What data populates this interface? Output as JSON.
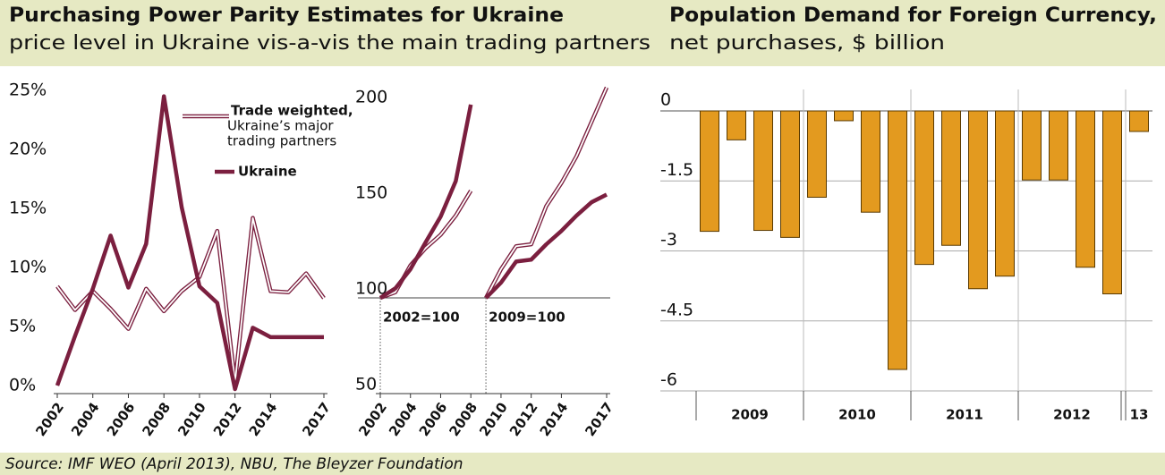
{
  "chart_data": [
    {
      "type": "line",
      "title": "Purchasing Power Parity Estimates for Ukraine",
      "subtitle": "price level in Ukraine vis-a-vis the main trading partners",
      "x": [
        2002,
        2003,
        2004,
        2005,
        2006,
        2007,
        2008,
        2009,
        2010,
        2011,
        2012,
        2013,
        2014,
        2015,
        2016,
        2017
      ],
      "xlim": [
        2002,
        2017
      ],
      "xticks": [
        2002,
        2004,
        2006,
        2008,
        2010,
        2012,
        2014,
        2017
      ],
      "ylim": [
        0,
        25
      ],
      "yticks": [
        {
          "value": 0,
          "label": "0%"
        },
        {
          "value": 5,
          "label": "5%"
        },
        {
          "value": 10,
          "label": "10%"
        },
        {
          "value": 15,
          "label": "15%"
        },
        {
          "value": 20,
          "label": "20%"
        },
        {
          "value": 25,
          "label": "25%"
        }
      ],
      "series": [
        {
          "name": "Trade weighted,",
          "description": [
            "Ukraine’s major",
            "trading partners"
          ],
          "style": "double",
          "color": "#7b1f3f",
          "values": [
            8.7,
            6.7,
            8.3,
            6.8,
            5.1,
            8.5,
            6.6,
            8.3,
            9.5,
            13.4,
            0.6,
            14.5,
            8.3,
            8.2,
            9.8,
            7.7
          ]
        },
        {
          "name": "Ukraine",
          "style": "solid",
          "color": "#7b1f3f",
          "values": [
            0.3,
            4.5,
            8.5,
            13,
            8.6,
            12.3,
            24.8,
            15.4,
            8.7,
            7.3,
            0,
            5.2,
            4.4,
            4.4,
            4.4,
            4.4
          ]
        }
      ]
    },
    {
      "type": "line",
      "xlim": [
        2002,
        2017
      ],
      "xticks": [
        2002,
        2004,
        2006,
        2008,
        2010,
        2012,
        2014,
        2017
      ],
      "ylim": [
        50,
        215
      ],
      "yticks": [
        50,
        100,
        150,
        200
      ],
      "reference_line": 100,
      "panels": [
        {
          "label": "2002=100",
          "x": [
            2002,
            2003,
            2004,
            2005,
            2006,
            2007,
            2008
          ],
          "series": [
            {
              "style": "double",
              "color": "#7b1f3f",
              "values": [
                100,
                103,
                117,
                126,
                133,
                143,
                156
              ]
            },
            {
              "style": "solid",
              "color": "#7b1f3f",
              "values": [
                100,
                105,
                115,
                129,
                142.5,
                161,
                201
              ]
            }
          ]
        },
        {
          "label": "2009=100",
          "x": [
            2009,
            2010,
            2011,
            2012,
            2013,
            2014,
            2015,
            2016,
            2017
          ],
          "series": [
            {
              "style": "double",
              "color": "#7b1f3f",
              "values": [
                100,
                115,
                127,
                128,
                148,
                160,
                174,
                192,
                210
              ]
            },
            {
              "style": "solid",
              "color": "#7b1f3f",
              "values": [
                100,
                108,
                119,
                120,
                128,
                135,
                143,
                150,
                154
              ]
            }
          ]
        }
      ]
    },
    {
      "type": "bar",
      "title": "Population Demand for Foreign Currency,",
      "subtitle": "net purchases, $ billion",
      "categories": [
        null,
        null,
        null,
        null,
        null,
        null,
        null,
        null,
        null,
        null,
        null,
        null,
        null,
        null,
        null,
        null,
        null
      ],
      "groups": [
        "2009",
        "2010",
        "2011",
        "2012",
        "13"
      ],
      "values": [
        -2.58,
        -0.62,
        -2.56,
        -2.71,
        -1.85,
        -0.21,
        -2.17,
        -5.54,
        -3.29,
        -2.88,
        -3.81,
        -3.54,
        -1.48,
        -1.48,
        -3.35,
        -3.92,
        -0.44
      ],
      "color": "#e39a1f",
      "ylim": [
        -6,
        0
      ],
      "yticks": [
        0,
        -1.5,
        -3,
        -4.5,
        -6
      ],
      "grid": true
    }
  ],
  "footer": {
    "source": "Source: IMF WEO (April 2013), NBU, The Bleyzer Foundation"
  }
}
